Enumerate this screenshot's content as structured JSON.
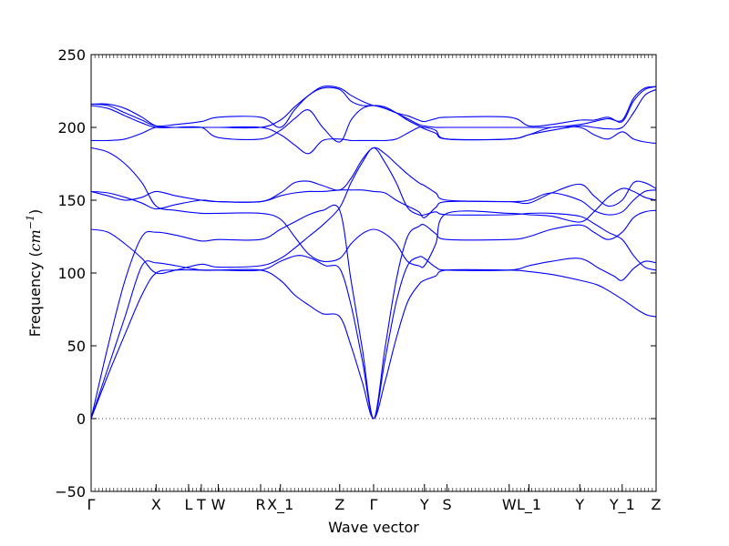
{
  "chart_data": {
    "type": "line",
    "title": "",
    "xlabel": "Wave vector",
    "ylabel": "Frequency (cm⁻¹)",
    "ylabel_parts": {
      "text": "Frequency (",
      "unit": "cm",
      "sup": "−1",
      "close": ")"
    },
    "ylim": [
      -50,
      250
    ],
    "yticks": [
      -50,
      0,
      50,
      100,
      150,
      200,
      250
    ],
    "xlim": [
      0,
      20
    ],
    "q_points": [
      {
        "label": "Γ",
        "x": 0
      },
      {
        "label": "X",
        "x": 2.3
      },
      {
        "label": "L",
        "x": 3.45
      },
      {
        "label": "T",
        "x": 3.9
      },
      {
        "label": "W",
        "x": 4.5
      },
      {
        "label": "R",
        "x": 6.0
      },
      {
        "label": "X_1",
        "x": 6.7
      },
      {
        "label": "Z",
        "x": 8.8
      },
      {
        "label": "Γ",
        "x": 10.0
      },
      {
        "label": "Y",
        "x": 11.8
      },
      {
        "label": "S",
        "x": 12.6
      },
      {
        "label": "W",
        "x": 14.8
      },
      {
        "label": "L_1",
        "x": 15.5
      },
      {
        "label": "Y",
        "x": 17.3
      },
      {
        "label": "Y_1",
        "x": 18.8
      },
      {
        "label": "Z",
        "x": 20.0
      }
    ],
    "grid": false,
    "legend": "none",
    "series_color": "#0000ff",
    "series": [
      {
        "x": [
          0,
          0.6,
          1.2,
          1.8,
          2.3,
          3.0,
          3.9,
          4.5,
          6.0,
          6.7,
          7.2,
          7.7,
          8.2,
          8.8,
          9.2,
          9.6,
          10.0,
          10.4,
          10.8,
          11.2,
          11.6,
          11.8,
          12.2,
          12.6,
          14.8,
          15.5,
          16.3,
          17.3,
          17.9,
          18.3,
          18.8,
          19.1,
          19.4,
          19.7,
          20.0
        ],
        "y": [
          0,
          30,
          58,
          85,
          100,
          102,
          102,
          102,
          102,
          95,
          85,
          78,
          72,
          70,
          50,
          25,
          0,
          25,
          55,
          80,
          92,
          95,
          98,
          102,
          102,
          101,
          99,
          95,
          92,
          88,
          82,
          78,
          74,
          71,
          70
        ]
      },
      {
        "x": [
          0,
          0.6,
          1.2,
          1.8,
          2.3,
          3.0,
          3.9,
          4.5,
          6.0,
          6.7,
          7.3,
          7.8,
          8.3,
          8.8,
          9.2,
          9.6,
          10.0,
          10.4,
          10.8,
          11.2,
          11.6,
          11.8,
          12.2,
          12.6,
          14.8,
          15.5,
          16.3,
          17.3,
          18.0,
          18.5,
          18.8,
          19.2,
          19.6,
          20.0
        ],
        "y": [
          0,
          35,
          70,
          105,
          107,
          105,
          102,
          102,
          102,
          108,
          112,
          110,
          105,
          103,
          78,
          40,
          0,
          40,
          80,
          105,
          111,
          110,
          104,
          102,
          102,
          105,
          108,
          110,
          103,
          98,
          95,
          103,
          108,
          107
        ]
      },
      {
        "x": [
          0,
          0.6,
          1.2,
          1.8,
          2.3,
          3.0,
          3.9,
          4.5,
          6.0,
          6.7,
          7.2,
          7.7,
          8.2,
          8.8,
          9.2,
          9.6,
          10.0,
          10.4,
          10.8,
          11.2,
          11.6,
          11.8,
          12.2,
          12.6,
          14.8,
          15.5,
          16.3,
          17.3,
          17.8,
          18.3,
          18.8,
          19.2,
          19.6,
          20.0
        ],
        "y": [
          0,
          50,
          95,
          125,
          128,
          126,
          122,
          123,
          123,
          130,
          135,
          140,
          143,
          143,
          95,
          48,
          0,
          48,
          95,
          125,
          132,
          133,
          127,
          123,
          123,
          125,
          130,
          133,
          128,
          123,
          128,
          138,
          142,
          143
        ]
      },
      {
        "x": [
          0,
          0.6,
          1.2,
          1.8,
          2.3,
          3.0,
          3.9,
          4.5,
          6.0,
          6.7,
          7.2,
          7.7,
          8.2,
          8.8,
          9.2,
          9.6,
          10.0,
          10.4,
          10.8,
          11.2,
          11.6,
          11.8,
          12.2,
          12.6,
          14.8,
          15.5,
          16.3,
          17.3,
          17.8,
          18.3,
          18.8,
          19.2,
          19.6,
          20.0
        ],
        "y": [
          130,
          128,
          120,
          110,
          100,
          102,
          106,
          104,
          105,
          110,
          117,
          125,
          133,
          145,
          162,
          176,
          186,
          176,
          162,
          145,
          140,
          140,
          142,
          140,
          140,
          141,
          141,
          139,
          134,
          128,
          123,
          112,
          104,
          102
        ]
      },
      {
        "x": [
          0,
          0.6,
          1.2,
          1.8,
          2.3,
          3.0,
          3.9,
          4.5,
          6.0,
          6.7,
          7.2,
          7.7,
          8.2,
          8.8,
          9.2,
          9.6,
          10.0,
          10.4,
          10.8,
          11.2,
          11.6,
          11.8,
          12.2,
          12.6,
          14.8,
          15.5,
          16.3,
          17.3,
          17.8,
          18.3,
          18.8,
          19.2,
          19.6,
          20.0
        ],
        "y": [
          186,
          183,
          175,
          162,
          146,
          143,
          141,
          141,
          141,
          137,
          125,
          113,
          108,
          110,
          120,
          127,
          130,
          127,
          120,
          108,
          105,
          105,
          120,
          141,
          141,
          140,
          139,
          135,
          142,
          152,
          158,
          156,
          152,
          150
        ]
      },
      {
        "x": [
          0,
          0.6,
          1.2,
          1.8,
          2.3,
          3.0,
          3.9,
          4.5,
          6.0,
          6.7,
          7.2,
          7.7,
          8.2,
          8.8,
          9.2,
          9.6,
          10.0,
          10.4,
          10.8,
          11.2,
          11.6,
          11.8,
          12.2,
          12.6,
          14.8,
          15.5,
          16.3,
          17.3,
          17.8,
          18.3,
          18.8,
          19.2,
          19.6,
          20.0
        ],
        "y": [
          156,
          155,
          152,
          148,
          144,
          147,
          150,
          149,
          149,
          153,
          155,
          156,
          156,
          157,
          157,
          157,
          156,
          155,
          150,
          146,
          142,
          138,
          145,
          149,
          149,
          150,
          155,
          150,
          143,
          140,
          142,
          150,
          156,
          157
        ]
      },
      {
        "x": [
          0,
          0.6,
          1.2,
          1.8,
          2.3,
          3.0,
          3.9,
          4.5,
          6.0,
          6.7,
          7.2,
          7.7,
          8.2,
          8.8,
          9.2,
          9.6,
          10.0,
          10.4,
          10.8,
          11.2,
          11.6,
          11.8,
          12.2,
          12.6,
          14.8,
          15.5,
          16.3,
          17.3,
          17.8,
          18.3,
          18.8,
          19.2,
          19.6,
          20.0
        ],
        "y": [
          156,
          153,
          150,
          152,
          156,
          153,
          150,
          149,
          149,
          155,
          162,
          163,
          160,
          157,
          165,
          178,
          186,
          182,
          175,
          168,
          162,
          160,
          155,
          150,
          149,
          148,
          155,
          161,
          153,
          146,
          150,
          162,
          162,
          158
        ]
      },
      {
        "x": [
          0,
          0.6,
          1.2,
          1.8,
          2.3,
          3.0,
          3.9,
          4.5,
          6.0,
          6.7,
          7.2,
          7.7,
          8.2,
          8.8,
          9.2,
          9.6,
          10.0,
          10.4,
          10.8,
          11.2,
          11.6,
          11.8,
          12.2,
          12.6,
          14.8,
          15.5,
          16.3,
          17.3,
          17.8,
          18.3,
          18.8,
          19.2,
          19.6,
          20.0
        ],
        "y": [
          191,
          191,
          192,
          196,
          200,
          200,
          200,
          200,
          200,
          195,
          188,
          182,
          191,
          192,
          191,
          191,
          191,
          191,
          192,
          196,
          200,
          200,
          198,
          192,
          192,
          195,
          200,
          200,
          195,
          192,
          197,
          192,
          190,
          189
        ]
      },
      {
        "x": [
          0,
          0.6,
          1.2,
          1.8,
          2.3,
          3.0,
          3.9,
          4.5,
          6.0,
          6.7,
          7.2,
          7.7,
          8.2,
          8.8,
          9.2,
          9.6,
          10.0,
          10.4,
          10.8,
          11.2,
          11.6,
          11.8,
          12.2,
          12.6,
          14.8,
          15.5,
          16.3,
          17.3,
          17.8,
          18.3,
          18.8,
          19.2,
          19.6,
          20.0
        ],
        "y": [
          215,
          213,
          208,
          203,
          200,
          200,
          200,
          193,
          192,
          198,
          206,
          212,
          200,
          190,
          205,
          213,
          215,
          214,
          210,
          205,
          201,
          199,
          196,
          192,
          192,
          195,
          198,
          201,
          200,
          199,
          200,
          210,
          222,
          226
        ]
      },
      {
        "x": [
          0,
          0.6,
          1.2,
          1.8,
          2.3,
          3.0,
          3.9,
          4.5,
          6.0,
          6.7,
          7.2,
          7.7,
          8.2,
          8.8,
          9.2,
          9.6,
          10.0,
          10.4,
          10.8,
          11.2,
          11.6,
          11.8,
          12.2,
          12.6,
          14.8,
          15.5,
          16.3,
          17.3,
          17.8,
          18.3,
          18.8,
          19.2,
          19.6,
          20.0
        ],
        "y": [
          216,
          215,
          210,
          205,
          201,
          202,
          204,
          207,
          207,
          200,
          212,
          222,
          227,
          226,
          218,
          215,
          215,
          213,
          210,
          208,
          205,
          204,
          206,
          207,
          207,
          201,
          202,
          205,
          205,
          207,
          204,
          218,
          226,
          228
        ]
      },
      {
        "x": [
          0,
          0.6,
          1.2,
          1.8,
          2.3,
          3.0,
          3.9,
          4.5,
          6.0,
          6.7,
          7.2,
          7.7,
          8.2,
          8.8,
          9.2,
          9.6,
          10.0,
          10.4,
          10.8,
          11.2,
          11.6,
          11.8,
          12.2,
          12.6,
          14.8,
          15.5,
          16.3,
          17.3,
          17.8,
          18.3,
          18.8,
          19.2,
          19.6,
          20.0
        ],
        "y": [
          216,
          216,
          213,
          207,
          201,
          200,
          200,
          200,
          200,
          205,
          214,
          222,
          228,
          227,
          222,
          218,
          215,
          214,
          210,
          206,
          202,
          201,
          200,
          200,
          200,
          200,
          200,
          202,
          204,
          206,
          205,
          220,
          227,
          228
        ]
      }
    ]
  }
}
